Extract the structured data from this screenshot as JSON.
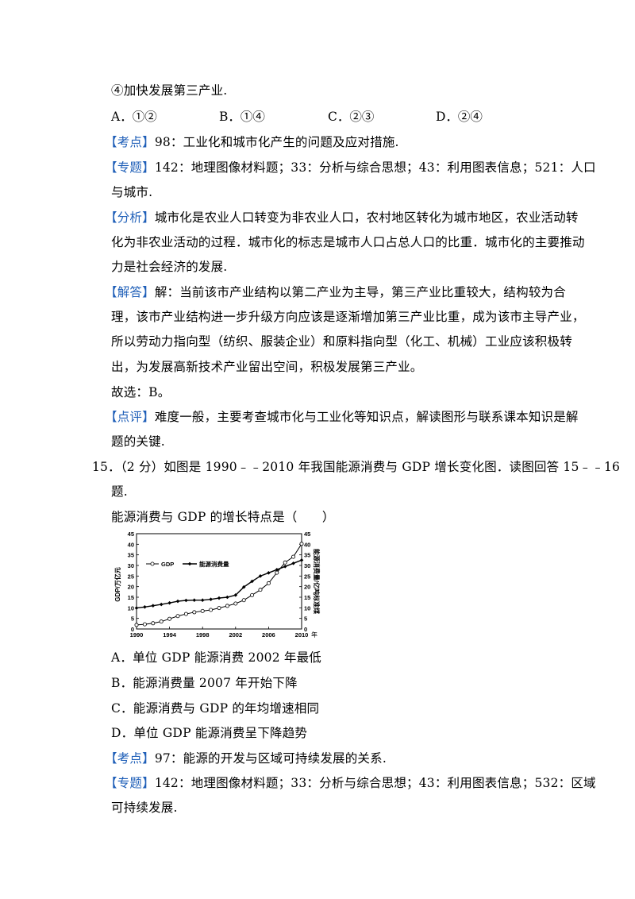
{
  "q14": {
    "item4": "④加快发展第三产业.",
    "options": [
      "A．①②",
      "B．①④",
      "C．②③",
      "D．②④"
    ],
    "kaodian": {
      "tag": "【考点】",
      "text": "98：工业化和城市化产生的问题及应对措施."
    },
    "zhuanti": {
      "tag": "【专题】",
      "lines": [
        "142：地理图像材料题；33：分析与综合思想；43：利用图表信息；521：人口",
        "与城市."
      ]
    },
    "fenxi": {
      "tag": "【分析】",
      "lines": [
        "城市化是农业人口转变为非农业人口，农村地区转化为城市地区，农业活动转",
        "化为非农业活动的过程．城市化的标志是城市人口占总人口的比重．城市化的主要推动",
        "力是社会经济的发展."
      ]
    },
    "jieda": {
      "tag": "【解答】",
      "lines": [
        "解：当前该市产业结构以第二产业为主导，第三产业比重较大，结构较为合",
        "理，该市产业结构进一步升级方向应该是逐渐增加第三产业比重，成为该市主导产业，",
        "所以劳动力指向型（纺织、服装企业）和原料指向型（化工、机械）工业应该积极转",
        "出，为发展高新技术产业留出空间，积极发展第三产业。"
      ]
    },
    "answer": "故选：B。",
    "dianping": {
      "tag": "【点评】",
      "lines": [
        "难度一般，主要考查城市化与工业化等知识点，解读图形与联系课本知识是解",
        "题的关键."
      ]
    }
  },
  "q15": {
    "stem_lines": [
      "15．（2 分）如图是 1990﹣﹣2010 年我国能源消费与 GDP 增长变化图．读图回答 15﹣﹣16",
      "题."
    ],
    "question": "能源消费与 GDP 的增长特点是（　　）",
    "options": [
      "A．单位 GDP 能源消费 2002 年最低",
      "B．能源消费量 2007 年开始下降",
      "C．能源消费与 GDP 的年均增速相同",
      "D．单位 GDP 能源消费呈下降趋势"
    ],
    "kaodian": {
      "tag": "【考点】",
      "text": "97：能源的开发与区域可持续发展的关系."
    },
    "zhuanti": {
      "tag": "【专题】",
      "lines": [
        "142：地理图像材料题；33：分析与综合思想；43：利用图表信息；532：区域",
        "可持续发展."
      ]
    }
  },
  "colors": {
    "tag": "#1f5fb8",
    "ink": "#000000"
  },
  "chart_data": {
    "type": "line",
    "x": [
      1990,
      1991,
      1992,
      1993,
      1994,
      1995,
      1996,
      1997,
      1998,
      1999,
      2000,
      2001,
      2002,
      2003,
      2004,
      2005,
      2006,
      2007,
      2008,
      2009,
      2010
    ],
    "series": [
      {
        "name": "GDP",
        "marker": "open-circle",
        "values": [
          1.9,
          2.2,
          2.7,
          3.5,
          4.8,
          6.1,
          7.1,
          7.9,
          8.5,
          9.0,
          9.9,
          10.9,
          12.0,
          13.6,
          16.0,
          18.5,
          21.6,
          26.6,
          31.4,
          34.1,
          40.2
        ]
      },
      {
        "name": "能源消费量",
        "marker": "filled-diamond",
        "values": [
          9.9,
          10.4,
          11.0,
          11.6,
          12.3,
          13.1,
          13.5,
          13.6,
          13.6,
          14.0,
          14.6,
          15.0,
          16.0,
          19.8,
          22.5,
          25.0,
          26.5,
          28.0,
          29.5,
          31.0,
          32.5
        ]
      }
    ],
    "xticks": [
      "1990",
      "1994",
      "1998",
      "2002",
      "2006",
      "2010"
    ],
    "x_unit": "年",
    "yticks_left": [
      "0",
      "5",
      "10",
      "15",
      "20",
      "25",
      "30",
      "35",
      "40",
      "45"
    ],
    "yticks_right": [
      "0",
      "5",
      "10",
      "15",
      "20",
      "25",
      "30",
      "35",
      "40",
      "45"
    ],
    "ylabel_left": "GDP/万亿元",
    "ylabel_right": "能源消费量/亿吨标准煤",
    "xlim": [
      1990,
      2010
    ],
    "ylim": [
      0,
      45
    ],
    "grid": false,
    "legend": "top-left"
  }
}
